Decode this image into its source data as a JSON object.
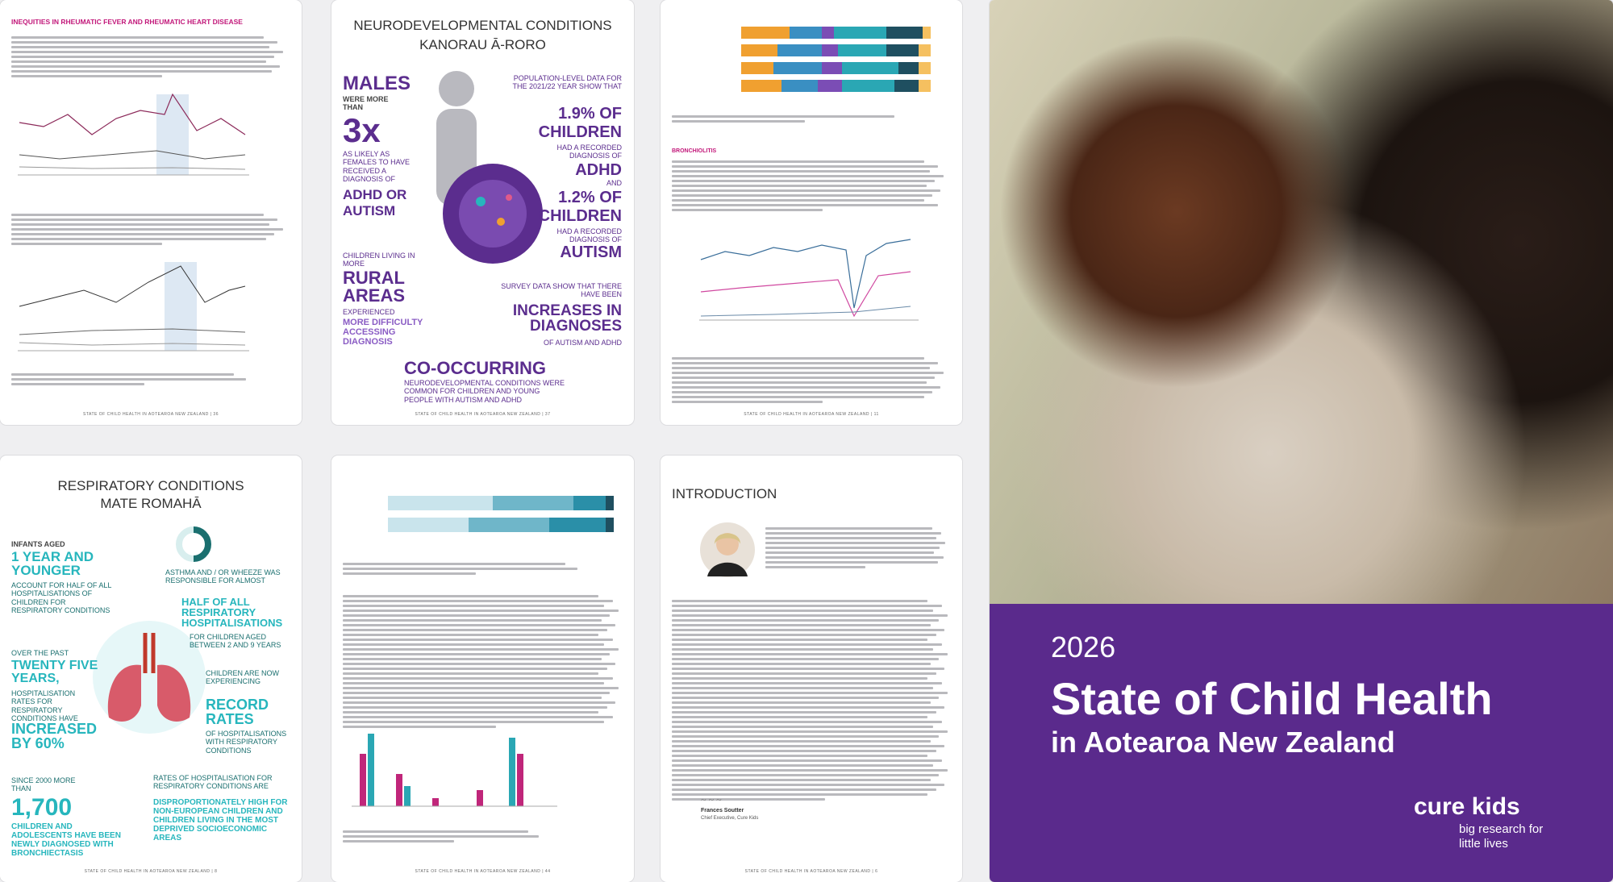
{
  "pages": [
    {
      "heading": "INEQUITIES IN RHEUMATIC FEVER AND RHEUMATIC HEART DISEASE",
      "footer": "STATE OF CHILD HEALTH IN AOTEAROA NEW ZEALAND | 36"
    },
    {
      "title": "NEURODEVELOPMENTAL CONDITIONS",
      "subtitle": "KANORAU Ā-RORO",
      "males": "MALES",
      "males_text": "WERE MORE THAN",
      "ratio": "3x",
      "ratio_text": "AS LIKELY AS FEMALES TO HAVE RECEIVED A DIAGNOSIS OF",
      "adhd_autism": "ADHD OR AUTISM",
      "population": "POPULATION-LEVEL DATA FOR THE 2021/22 YEAR SHOW THAT",
      "adhd_pct": "1.9% OF CHILDREN",
      "adhd_text": "HAD A RECORDED DIAGNOSIS OF",
      "adhd": "ADHD",
      "and": "AND",
      "autism_pct": "1.2% OF CHILDREN",
      "autism_text": "HAD A RECORDED DIAGNOSIS OF",
      "autism": "AUTISM",
      "rural_intro": "CHILDREN LIVING IN MORE",
      "rural": "RURAL AREAS",
      "rural_text": "EXPERIENCED",
      "rural_difficulty": "MORE DIFFICULTY ACCESSING DIAGNOSIS",
      "survey": "SURVEY DATA SHOW THAT THERE HAVE BEEN",
      "increases": "INCREASES IN DIAGNOSES",
      "increases_text": "OF AUTISM AND ADHD",
      "cooccurring": "CO-OCCURRING",
      "cooccurring_text": "NEURODEVELOPMENTAL CONDITIONS WERE COMMON FOR CHILDREN AND YOUNG PEOPLE WITH AUTISM AND ADHD",
      "footer": "STATE OF CHILD HEALTH IN AOTEAROA NEW ZEALAND | 37"
    },
    {
      "heading": "BRONCHIOLITIS",
      "footer": "STATE OF CHILD HEALTH IN AOTEAROA NEW ZEALAND | 11"
    },
    {
      "title": "RESPIRATORY CONDITIONS",
      "subtitle": "MATE ROMAHĀ",
      "infants_intro": "INFANTS AGED",
      "infants": "1 YEAR AND YOUNGER",
      "infants_text": "ACCOUNT FOR HALF OF ALL HOSPITALISATIONS OF CHILDREN FOR RESPIRATORY CONDITIONS",
      "asthma": "ASTHMA AND / OR WHEEZE WAS RESPONSIBLE FOR ALMOST",
      "asthma_half": "HALF OF ALL RESPIRATORY HOSPITALISATIONS",
      "asthma_text": "FOR CHILDREN AGED BETWEEN 2 AND 9 YEARS",
      "past": "OVER THE PAST",
      "years": "TWENTY FIVE YEARS,",
      "past_text": "HOSPITALISATION RATES FOR RESPIRATORY CONDITIONS HAVE",
      "increased": "INCREASED BY 60%",
      "record_intro": "CHILDREN ARE NOW EXPERIENCING",
      "record": "RECORD RATES",
      "record_text": "OF HOSPITALISATIONS WITH RESPIRATORY CONDITIONS",
      "since": "SINCE 2000 MORE THAN",
      "count": "1,700",
      "count_text": "CHILDREN AND ADOLESCENTS HAVE BEEN NEWLY DIAGNOSED WITH BRONCHIECTASIS",
      "rates": "RATES OF HOSPITALISATION FOR RESPIRATORY CONDITIONS ARE",
      "rates_text": "DISPROPORTIONATELY HIGH FOR NON-EUROPEAN CHILDREN AND CHILDREN LIVING IN THE MOST DEPRIVED SOCIOECONOMIC AREAS",
      "footer": "STATE OF CHILD HEALTH IN AOTEAROA NEW ZEALAND | 8"
    },
    {
      "footer": "STATE OF CHILD HEALTH IN AOTEAROA NEW ZEALAND | 44"
    },
    {
      "title": "INTRODUCTION",
      "signature": "Frances Soutter",
      "signer_role": "Chief Executive, Cure Kids",
      "footer": "STATE OF CHILD HEALTH IN AOTEAROA NEW ZEALAND | 6"
    }
  ],
  "cover": {
    "year": "2026",
    "title": "State of Child Health",
    "subtitle": "in Aotearoa New Zealand",
    "brand": "cure kids",
    "tagline": "big research for little lives"
  }
}
